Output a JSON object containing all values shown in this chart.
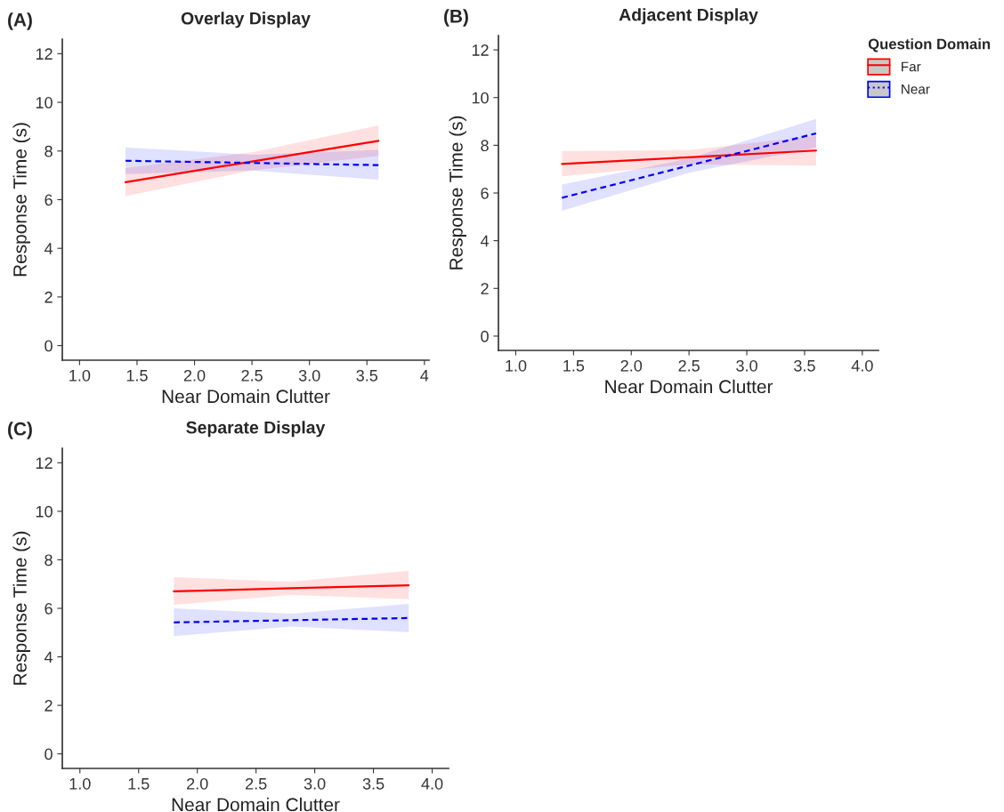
{
  "chart_data": [
    {
      "type": "line",
      "title": "Overlay Display",
      "annotations": [
        "(A)"
      ],
      "xlabel": "Near Domain Clutter",
      "ylabel": "Response Time (s)",
      "xlim": [
        0.85,
        4.04
      ],
      "ylim": [
        -0.6,
        12.6
      ],
      "xticks": [
        {
          "value": 1,
          "label": "1.0"
        },
        1.5,
        {
          "value": 2,
          "label": "2.0"
        },
        2.5,
        {
          "value": 3,
          "label": "3.0"
        },
        3.5,
        4
      ],
      "yticks": [
        0,
        2,
        4,
        6,
        8,
        10,
        12
      ],
      "grid": false,
      "legend": false,
      "series": [
        {
          "color": "#ff0000",
          "line_style": "solid",
          "x": [
            1.4,
            2.5,
            3.6
          ],
          "values": [
            6.72,
            7.57,
            8.42
          ],
          "lower": [
            6.15,
            7.2,
            7.8
          ],
          "upper": [
            7.3,
            7.95,
            9.05
          ]
        },
        {
          "color": "#0000ff",
          "line_style": "dashed",
          "x": [
            1.4,
            2.5,
            3.6
          ],
          "values": [
            7.6,
            7.51,
            7.42
          ],
          "lower": [
            7.05,
            7.2,
            6.82
          ],
          "upper": [
            8.15,
            7.85,
            8.05
          ]
        }
      ]
    },
    {
      "type": "line",
      "title": "Adjacent Display",
      "annotations": [
        "(B)"
      ],
      "xlabel": "Near Domain Clutter",
      "ylabel": "Response Time (s)",
      "xlim": [
        0.85,
        4.14
      ],
      "ylim": [
        -0.6,
        12.6
      ],
      "xticks": [
        {
          "value": 1,
          "label": "1.0"
        },
        1.5,
        {
          "value": 2,
          "label": "2.0"
        },
        2.5,
        {
          "value": 3,
          "label": "3.0"
        },
        3.5,
        {
          "value": 4,
          "label": "4.0"
        }
      ],
      "yticks": [
        0,
        2,
        4,
        6,
        8,
        10,
        12
      ],
      "grid": false,
      "legend": "right",
      "legend_title": "Question Domain",
      "series": [
        {
          "name": "Far",
          "color": "#ff0000",
          "line_style": "solid",
          "x": [
            1.4,
            2.5,
            3.6
          ],
          "values": [
            7.22,
            7.5,
            7.78
          ],
          "lower": [
            6.7,
            7.2,
            7.15
          ],
          "upper": [
            7.75,
            7.8,
            8.4
          ]
        },
        {
          "name": "Near",
          "color": "#0000ff",
          "line_style": "dashed",
          "x": [
            1.4,
            2.5,
            3.6
          ],
          "values": [
            5.8,
            7.15,
            8.5
          ],
          "lower": [
            5.25,
            6.85,
            7.9
          ],
          "upper": [
            6.35,
            7.45,
            9.1
          ]
        }
      ]
    },
    {
      "type": "line",
      "title": "Separate Display",
      "annotations": [
        "(C)"
      ],
      "xlabel": "Near Domain Clutter",
      "ylabel": "Response Time (s)",
      "xlim": [
        0.85,
        4.14
      ],
      "ylim": [
        -0.6,
        12.6
      ],
      "xticks": [
        {
          "value": 1,
          "label": "1.0"
        },
        1.5,
        {
          "value": 2,
          "label": "2.0"
        },
        2.5,
        {
          "value": 3,
          "label": "3.0"
        },
        3.5,
        {
          "value": 4,
          "label": "4.0"
        }
      ],
      "yticks": [
        0,
        2,
        4,
        6,
        8,
        10,
        12
      ],
      "grid": false,
      "legend": false,
      "series": [
        {
          "color": "#ff0000",
          "line_style": "solid",
          "x": [
            1.8,
            2.8,
            3.8
          ],
          "values": [
            6.7,
            6.83,
            6.95
          ],
          "lower": [
            6.15,
            6.55,
            6.38
          ],
          "upper": [
            7.28,
            7.1,
            7.55
          ]
        },
        {
          "color": "#0000ff",
          "line_style": "dashed",
          "x": [
            1.8,
            2.8,
            3.8
          ],
          "values": [
            5.42,
            5.51,
            5.6
          ],
          "lower": [
            4.85,
            5.25,
            5.02
          ],
          "upper": [
            6.0,
            5.78,
            6.18
          ]
        }
      ]
    }
  ]
}
